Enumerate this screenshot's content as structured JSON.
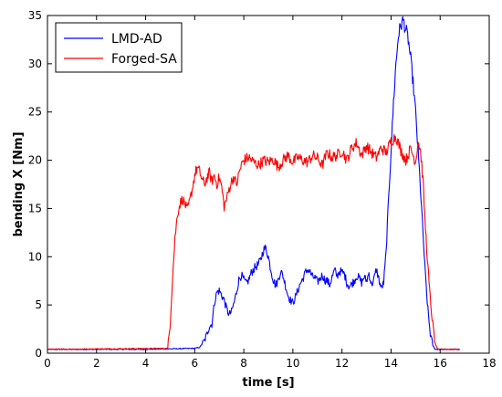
{
  "chart_data": {
    "type": "line",
    "title": "",
    "xlabel": "time [s]",
    "ylabel": "bending X [Nm]",
    "xlim": [
      0,
      18
    ],
    "ylim": [
      0,
      35
    ],
    "xticks": [
      0,
      2,
      4,
      6,
      8,
      10,
      12,
      14,
      16,
      18
    ],
    "yticks": [
      0,
      5,
      10,
      15,
      20,
      25,
      30,
      35
    ],
    "grid": false,
    "legend": "top-left",
    "series": [
      {
        "name": "LMD-AD",
        "color": "#0000ff",
        "x": [
          0,
          4.0,
          6.0,
          6.2,
          6.4,
          6.5,
          6.6,
          6.7,
          6.8,
          6.9,
          7.0,
          7.1,
          7.2,
          7.3,
          7.4,
          7.5,
          7.6,
          7.7,
          7.8,
          7.9,
          8.0,
          8.1,
          8.2,
          8.3,
          8.4,
          8.5,
          8.6,
          8.7,
          8.8,
          8.9,
          9.0,
          9.1,
          9.2,
          9.3,
          9.4,
          9.5,
          9.6,
          9.7,
          9.8,
          9.9,
          10.0,
          10.1,
          10.2,
          10.3,
          10.4,
          10.5,
          10.6,
          10.7,
          10.8,
          10.9,
          11.0,
          11.1,
          11.2,
          11.3,
          11.4,
          11.5,
          11.6,
          11.7,
          11.8,
          11.9,
          12.0,
          12.1,
          12.2,
          12.3,
          12.4,
          12.5,
          12.6,
          12.7,
          12.8,
          12.9,
          13.0,
          13.1,
          13.2,
          13.3,
          13.4,
          13.5,
          13.6,
          13.7,
          13.8,
          13.9,
          14.0,
          14.1,
          14.2,
          14.3,
          14.4,
          14.5,
          14.6,
          14.7,
          14.8,
          14.9,
          15.0,
          15.1,
          15.2,
          15.3,
          15.4,
          15.5,
          15.6,
          15.7,
          15.8,
          15.9,
          16.0,
          16.2,
          16.8
        ],
        "y": [
          0.4,
          0.4,
          0.5,
          0.6,
          1.3,
          2.0,
          2.8,
          3.0,
          5.2,
          6.3,
          6.5,
          6.0,
          5.5,
          4.6,
          4.0,
          4.3,
          5.2,
          6.3,
          7.6,
          8.1,
          7.6,
          7.2,
          7.6,
          8.3,
          8.7,
          9.0,
          9.2,
          9.8,
          10.7,
          10.9,
          10.0,
          8.7,
          7.6,
          7.0,
          7.6,
          8.5,
          8.0,
          7.0,
          6.0,
          5.5,
          5.2,
          5.8,
          6.5,
          7.2,
          7.7,
          8.3,
          8.7,
          8.4,
          7.9,
          7.8,
          7.4,
          7.7,
          8.1,
          7.6,
          7.5,
          7.1,
          7.9,
          8.6,
          8.0,
          8.5,
          8.4,
          8.2,
          7.3,
          6.9,
          7.2,
          7.5,
          8.0,
          7.8,
          7.3,
          7.9,
          7.5,
          8.3,
          7.1,
          7.6,
          8.7,
          7.7,
          6.7,
          7.3,
          10.5,
          16.0,
          21.0,
          26.0,
          30.0,
          33.0,
          34.0,
          34.5,
          33.5,
          32.5,
          30.5,
          28.0,
          25.0,
          21.0,
          17.0,
          12.5,
          8.0,
          4.5,
          2.0,
          0.8,
          0.4,
          0.4,
          0.4,
          0.4,
          0.4
        ]
      },
      {
        "name": "Forged-SA",
        "color": "#ff0000",
        "x": [
          0,
          4.9,
          5.0,
          5.1,
          5.2,
          5.3,
          5.4,
          5.5,
          5.6,
          5.7,
          5.8,
          5.9,
          6.0,
          6.1,
          6.2,
          6.3,
          6.4,
          6.5,
          6.6,
          6.7,
          6.8,
          6.9,
          7.0,
          7.1,
          7.2,
          7.3,
          7.4,
          7.5,
          7.6,
          7.7,
          7.8,
          7.9,
          8.0,
          8.2,
          8.4,
          8.6,
          8.8,
          9.0,
          9.2,
          9.4,
          9.6,
          9.8,
          10.0,
          10.2,
          10.4,
          10.6,
          10.8,
          11.0,
          11.2,
          11.4,
          11.6,
          11.8,
          12.0,
          12.2,
          12.4,
          12.6,
          12.8,
          13.0,
          13.2,
          13.4,
          13.6,
          13.8,
          14.0,
          14.2,
          14.4,
          14.6,
          14.8,
          15.0,
          15.1,
          15.2,
          15.3,
          15.4,
          15.5,
          15.6,
          15.7,
          15.8,
          15.9,
          16.0,
          16.2,
          16.8
        ],
        "y": [
          0.4,
          0.5,
          3.0,
          8.0,
          12.0,
          14.5,
          15.5,
          16.0,
          15.5,
          14.8,
          15.8,
          17.0,
          18.5,
          19.2,
          18.8,
          18.0,
          17.5,
          18.2,
          18.7,
          17.8,
          18.4,
          17.5,
          18.2,
          17.2,
          15.2,
          16.0,
          17.0,
          17.8,
          18.3,
          17.4,
          18.6,
          19.5,
          20.0,
          20.3,
          19.8,
          19.5,
          20.0,
          19.8,
          20.1,
          19.3,
          20.0,
          20.5,
          19.8,
          20.3,
          20.0,
          19.8,
          20.5,
          20.2,
          19.5,
          20.8,
          20.3,
          20.5,
          21.0,
          20.0,
          21.3,
          21.8,
          20.5,
          21.5,
          20.8,
          20.3,
          21.3,
          20.8,
          22.0,
          22.5,
          21.0,
          20.0,
          21.2,
          19.8,
          22.0,
          21.0,
          18.0,
          13.0,
          9.0,
          5.5,
          3.0,
          1.0,
          0.4,
          0.4,
          0.4,
          0.4
        ]
      }
    ]
  }
}
